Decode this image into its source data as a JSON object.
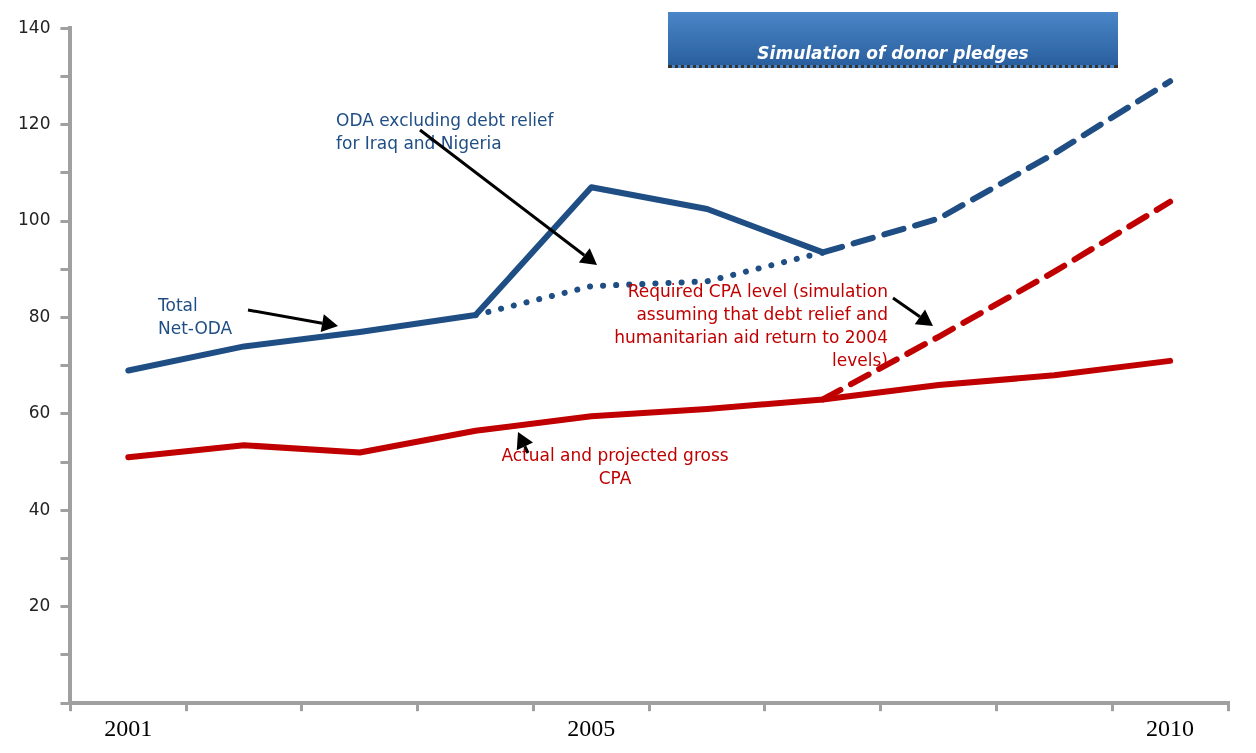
{
  "chart_data": {
    "type": "line",
    "categories": [
      "2001",
      null,
      null,
      null,
      "2005",
      null,
      null,
      null,
      null,
      "2010"
    ],
    "series": [
      {
        "name": "Total Net-ODA",
        "color": "#1f4e84",
        "line_style": [
          "solid",
          "solid",
          "solid",
          "solid",
          "solid",
          "solid",
          "dashed",
          "dashed",
          "dashed"
        ],
        "values": [
          69,
          74,
          77,
          80.5,
          107,
          102.5,
          93.5,
          100.5,
          114,
          129
        ]
      },
      {
        "name": "ODA excluding debt relief for Iraq and Nigeria",
        "color": "#1f4e84",
        "line_style": "dotted",
        "values": [
          null,
          null,
          null,
          80.5,
          86.5,
          87.5,
          93.5,
          null,
          null,
          null
        ]
      },
      {
        "name": "Actual and projected gross CPA",
        "color": "#c00000",
        "line_style": "solid",
        "values": [
          51,
          53.5,
          52,
          56.5,
          59.5,
          61,
          63,
          66,
          68,
          71
        ]
      },
      {
        "name": "Required CPA level (simulation assuming that debt relief and humanitarian aid return to 2004 levels)",
        "color": "#c00000",
        "line_style": "dashed",
        "values": [
          null,
          null,
          null,
          null,
          null,
          null,
          63,
          76,
          89.5,
          104
        ]
      }
    ],
    "ylim": [
      0,
      140
    ],
    "yticks": [
      {
        "value": 0,
        "label": null
      },
      {
        "value": 10,
        "label": null
      },
      20,
      {
        "value": 30,
        "label": null
      },
      40,
      {
        "value": 50,
        "label": null
      },
      60,
      {
        "value": 70,
        "label": null
      },
      80,
      {
        "value": 90,
        "label": null
      },
      100,
      {
        "value": 110,
        "label": null
      },
      120,
      {
        "value": 130,
        "label": null
      },
      140
    ],
    "annotations": [
      "Simulation of donor pledges"
    ],
    "grid": false,
    "legend": false,
    "marker": "none"
  }
}
